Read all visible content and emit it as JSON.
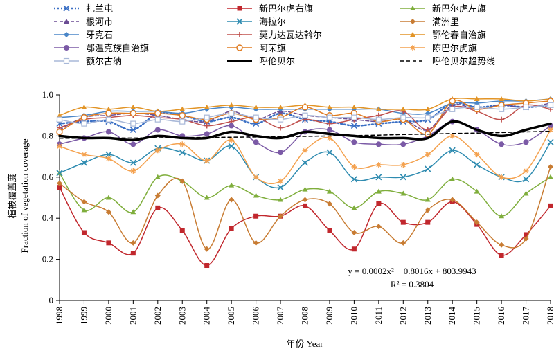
{
  "chart_data": {
    "type": "line",
    "title": "",
    "xlabel": "年份 Year",
    "ylabel": "植被覆盖度 Fraction of vegetation coverage",
    "ylabel_parts": [
      "植被覆盖度",
      "Fraction of vegetation coverage"
    ],
    "ylim": [
      0,
      1.0
    ],
    "yticks": [
      "0",
      "0.2",
      "0.4",
      "0.6",
      "0.8",
      "1.0"
    ],
    "x": [
      1998,
      1999,
      2000,
      2001,
      2002,
      2003,
      2004,
      2005,
      2006,
      2007,
      2008,
      2009,
      2010,
      2011,
      2012,
      2013,
      2014,
      2015,
      2016,
      2017,
      2018
    ],
    "grid": false,
    "legend_position": "top",
    "series": [
      {
        "name": "扎兰屯",
        "color": "#3a6fc4",
        "marker": "x",
        "line": "dotted",
        "values": [
          0.86,
          0.87,
          0.87,
          0.83,
          0.91,
          0.9,
          0.87,
          0.89,
          0.86,
          0.91,
          0.88,
          0.87,
          0.85,
          0.86,
          0.87,
          0.88,
          0.96,
          0.94,
          0.95,
          0.94,
          0.95
        ]
      },
      {
        "name": "新巴尔虎右旗",
        "color": "#c1272d",
        "marker": "square",
        "line": "solid",
        "values": [
          0.55,
          0.33,
          0.28,
          0.23,
          0.45,
          0.34,
          0.17,
          0.35,
          0.41,
          0.41,
          0.46,
          0.34,
          0.25,
          0.47,
          0.38,
          0.38,
          0.48,
          0.37,
          0.22,
          0.32,
          0.46
        ]
      },
      {
        "name": "新巴尔虎左旗",
        "color": "#7fae3c",
        "marker": "triangle",
        "line": "solid",
        "values": [
          0.62,
          0.44,
          0.5,
          0.43,
          0.6,
          0.58,
          0.5,
          0.56,
          0.51,
          0.49,
          0.54,
          0.53,
          0.45,
          0.53,
          0.52,
          0.49,
          0.59,
          0.53,
          0.41,
          0.52,
          0.6
        ]
      },
      {
        "name": "根河市",
        "color": "#6a4c93",
        "marker": "triangle",
        "line": "dashed",
        "values": [
          0.83,
          0.89,
          0.9,
          0.91,
          0.9,
          0.88,
          0.87,
          0.92,
          0.88,
          0.92,
          0.9,
          0.89,
          0.88,
          0.87,
          0.88,
          0.83,
          0.95,
          0.93,
          0.95,
          0.94,
          0.96
        ]
      },
      {
        "name": "海拉尔",
        "color": "#2e8bb0",
        "marker": "x",
        "line": "solid",
        "values": [
          0.62,
          0.67,
          0.71,
          0.67,
          0.74,
          0.72,
          0.68,
          0.75,
          0.6,
          0.55,
          0.67,
          0.72,
          0.59,
          0.6,
          0.6,
          0.64,
          0.73,
          0.66,
          0.6,
          0.59,
          0.77
        ]
      },
      {
        "name": "满洲里",
        "color": "#c87c33",
        "marker": "diamond",
        "line": "solid",
        "values": [
          0.57,
          0.48,
          0.43,
          0.28,
          0.51,
          0.58,
          0.25,
          0.49,
          0.28,
          0.41,
          0.49,
          0.47,
          0.33,
          0.36,
          0.28,
          0.44,
          0.49,
          0.38,
          0.27,
          0.3,
          0.65
        ]
      },
      {
        "name": "牙克石",
        "color": "#4a86c8",
        "marker": "diamond",
        "line": "solid",
        "values": [
          0.89,
          0.9,
          0.92,
          0.92,
          0.92,
          0.91,
          0.93,
          0.94,
          0.93,
          0.93,
          0.93,
          0.93,
          0.93,
          0.93,
          0.91,
          0.91,
          0.96,
          0.96,
          0.97,
          0.97,
          0.98
        ]
      },
      {
        "name": "莫力达瓦达斡尔",
        "color": "#c0504d",
        "marker": "plus",
        "line": "solid",
        "values": [
          0.84,
          0.88,
          0.89,
          0.9,
          0.89,
          0.88,
          0.85,
          0.87,
          0.89,
          0.84,
          0.88,
          0.86,
          0.88,
          0.9,
          0.92,
          0.83,
          0.94,
          0.92,
          0.88,
          0.95,
          0.93
        ]
      },
      {
        "name": "鄂伦春自治旗",
        "color": "#e29426",
        "marker": "triangle",
        "line": "solid",
        "values": [
          0.9,
          0.94,
          0.93,
          0.94,
          0.92,
          0.93,
          0.94,
          0.95,
          0.94,
          0.94,
          0.95,
          0.94,
          0.94,
          0.93,
          0.93,
          0.93,
          0.98,
          0.98,
          0.98,
          0.97,
          0.98
        ]
      },
      {
        "name": "鄂温克族自治旗",
        "color": "#7b5aa6",
        "marker": "circle",
        "line": "solid",
        "values": [
          0.76,
          0.79,
          0.82,
          0.76,
          0.83,
          0.8,
          0.81,
          0.85,
          0.77,
          0.72,
          0.82,
          0.83,
          0.77,
          0.76,
          0.76,
          0.8,
          0.87,
          0.83,
          0.76,
          0.77,
          0.85
        ]
      },
      {
        "name": "阿荣旗",
        "color": "#e07b20",
        "marker": "circle-open",
        "line": "solid",
        "values": [
          0.82,
          0.89,
          0.91,
          0.91,
          0.91,
          0.9,
          0.88,
          0.91,
          0.88,
          0.89,
          0.94,
          0.9,
          0.91,
          0.87,
          0.88,
          0.81,
          0.97,
          0.93,
          0.95,
          0.96,
          0.97
        ]
      },
      {
        "name": "陈巴尔虎旗",
        "color": "#f4a14e",
        "marker": "asterisk",
        "line": "solid",
        "values": [
          0.75,
          0.71,
          0.69,
          0.63,
          0.73,
          0.76,
          0.68,
          0.78,
          0.6,
          0.58,
          0.73,
          0.79,
          0.65,
          0.66,
          0.66,
          0.71,
          0.8,
          0.71,
          0.6,
          0.63,
          0.83
        ]
      },
      {
        "name": "额尔古纳",
        "color": "#a8b8d8",
        "marker": "square-open",
        "line": "solid",
        "values": [
          0.88,
          0.86,
          0.88,
          0.86,
          0.88,
          0.87,
          0.89,
          0.91,
          0.89,
          0.88,
          0.9,
          0.89,
          0.89,
          0.88,
          0.89,
          0.89,
          0.93,
          0.94,
          0.93,
          0.94,
          0.95
        ]
      },
      {
        "name": "呼伦贝尔",
        "color": "#000000",
        "marker": "none",
        "line": "thick",
        "values": [
          0.8,
          0.79,
          0.79,
          0.78,
          0.8,
          0.79,
          0.79,
          0.82,
          0.8,
          0.79,
          0.82,
          0.81,
          0.8,
          0.79,
          0.79,
          0.79,
          0.87,
          0.83,
          0.8,
          0.83,
          0.86
        ]
      },
      {
        "name": "呼伦贝尔趋势线",
        "color": "#000000",
        "marker": "none",
        "line": "trend",
        "values": [
          0.789,
          0.789,
          0.79,
          0.79,
          0.791,
          0.792,
          0.793,
          0.794,
          0.795,
          0.797,
          0.798,
          0.8,
          0.802,
          0.804,
          0.807,
          0.809,
          0.812,
          0.814,
          0.817,
          0.82,
          0.823
        ]
      }
    ],
    "annotations": {
      "equation": "y = 0.0002x² − 0.8016x + 803.9943",
      "r2": "R² = 0.3804"
    }
  }
}
